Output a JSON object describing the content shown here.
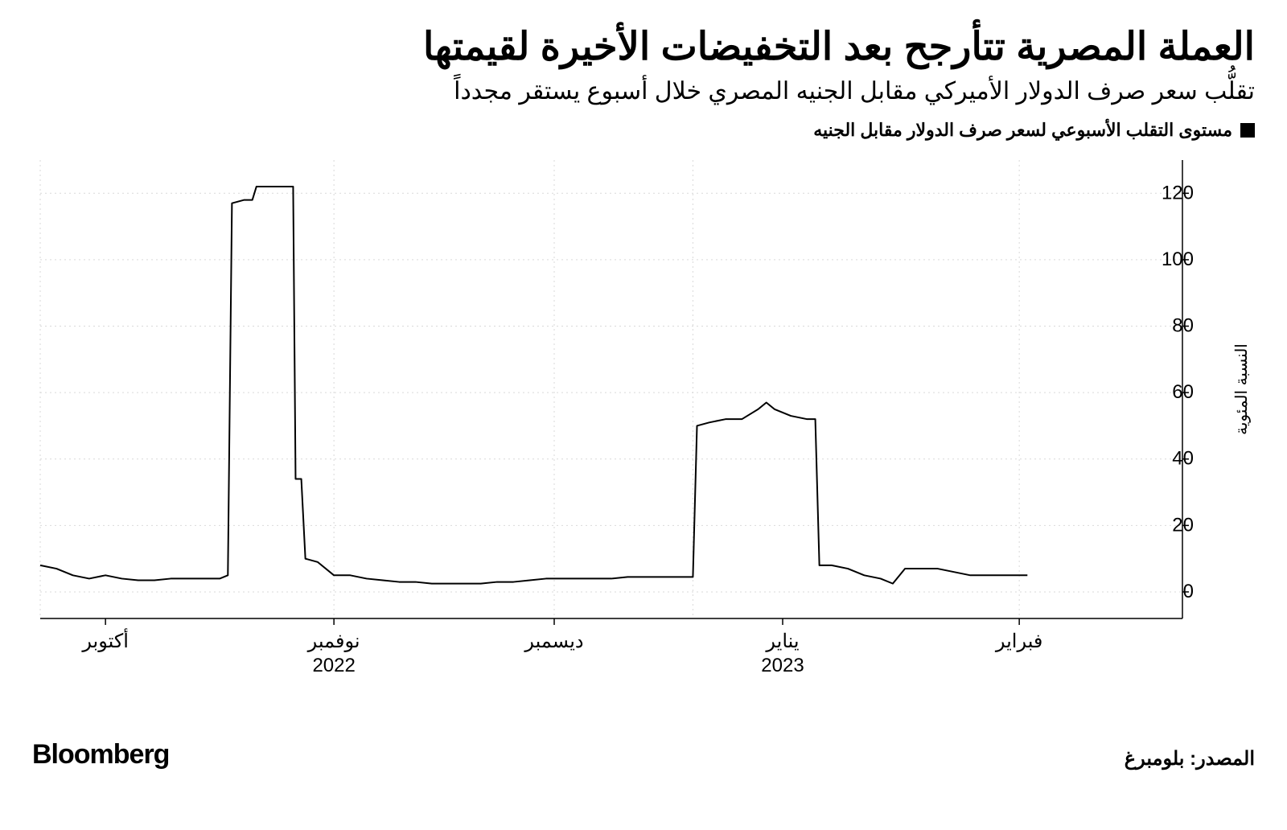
{
  "title": "العملة المصرية تتأرجح بعد التخفيضات الأخيرة لقيمتها",
  "subtitle": "تقلُّب سعر صرف الدولار الأميركي مقابل الجنيه المصري خلال أسبوع يستقر مجدداً",
  "legend_label": "مستوى التقلب الأسبوعي لسعر صرف الدولار مقابل الجنيه",
  "brand": "Bloomberg",
  "source": "المصدر: بلومبرغ",
  "chart": {
    "type": "line",
    "ylim": [
      -8,
      130
    ],
    "yticks": [
      0,
      20,
      40,
      60,
      80,
      100,
      120
    ],
    "yaxis_title": "النسبة المئوية",
    "background_color": "#ffffff",
    "axis_color": "#000000",
    "grid_color": "#d9d9d9",
    "line_color": "#000000",
    "line_width": 2,
    "xrange": [
      0,
      140
    ],
    "months": [
      {
        "x": 8,
        "label": "أكتوبر",
        "year": ""
      },
      {
        "x": 36,
        "label": "نوفمبر",
        "year": "2022"
      },
      {
        "x": 63,
        "label": "ديسمبر",
        "year": ""
      },
      {
        "x": 91,
        "label": "يناير",
        "year": "2023"
      },
      {
        "x": 120,
        "label": "فبراير",
        "year": ""
      }
    ],
    "vgrids": [
      0,
      36,
      63,
      80,
      120
    ],
    "series": [
      {
        "x": 0,
        "y": 8
      },
      {
        "x": 2,
        "y": 7
      },
      {
        "x": 4,
        "y": 5
      },
      {
        "x": 6,
        "y": 4
      },
      {
        "x": 8,
        "y": 5
      },
      {
        "x": 10,
        "y": 4
      },
      {
        "x": 12,
        "y": 3.5
      },
      {
        "x": 14,
        "y": 3.5
      },
      {
        "x": 16,
        "y": 4
      },
      {
        "x": 18,
        "y": 4
      },
      {
        "x": 20,
        "y": 4
      },
      {
        "x": 22,
        "y": 4
      },
      {
        "x": 23,
        "y": 5
      },
      {
        "x": 23.5,
        "y": 117
      },
      {
        "x": 25,
        "y": 118
      },
      {
        "x": 26,
        "y": 118
      },
      {
        "x": 26.5,
        "y": 122
      },
      {
        "x": 28,
        "y": 122
      },
      {
        "x": 30,
        "y": 122
      },
      {
        "x": 31,
        "y": 122
      },
      {
        "x": 31.3,
        "y": 34
      },
      {
        "x": 32,
        "y": 34
      },
      {
        "x": 32.5,
        "y": 10
      },
      {
        "x": 34,
        "y": 9
      },
      {
        "x": 36,
        "y": 5
      },
      {
        "x": 38,
        "y": 5
      },
      {
        "x": 40,
        "y": 4
      },
      {
        "x": 42,
        "y": 3.5
      },
      {
        "x": 44,
        "y": 3
      },
      {
        "x": 46,
        "y": 3
      },
      {
        "x": 48,
        "y": 2.5
      },
      {
        "x": 50,
        "y": 2.5
      },
      {
        "x": 52,
        "y": 2.5
      },
      {
        "x": 54,
        "y": 2.5
      },
      {
        "x": 56,
        "y": 3
      },
      {
        "x": 58,
        "y": 3
      },
      {
        "x": 60,
        "y": 3.5
      },
      {
        "x": 62,
        "y": 4
      },
      {
        "x": 64,
        "y": 4
      },
      {
        "x": 66,
        "y": 4
      },
      {
        "x": 68,
        "y": 4
      },
      {
        "x": 70,
        "y": 4
      },
      {
        "x": 72,
        "y": 4.5
      },
      {
        "x": 74,
        "y": 4.5
      },
      {
        "x": 76,
        "y": 4.5
      },
      {
        "x": 78,
        "y": 4.5
      },
      {
        "x": 80,
        "y": 4.5
      },
      {
        "x": 80.5,
        "y": 50
      },
      {
        "x": 82,
        "y": 51
      },
      {
        "x": 84,
        "y": 52
      },
      {
        "x": 86,
        "y": 52
      },
      {
        "x": 88,
        "y": 55
      },
      {
        "x": 89,
        "y": 57
      },
      {
        "x": 90,
        "y": 55
      },
      {
        "x": 92,
        "y": 53
      },
      {
        "x": 94,
        "y": 52
      },
      {
        "x": 95,
        "y": 52
      },
      {
        "x": 95.5,
        "y": 8
      },
      {
        "x": 97,
        "y": 8
      },
      {
        "x": 99,
        "y": 7
      },
      {
        "x": 101,
        "y": 5
      },
      {
        "x": 103,
        "y": 4
      },
      {
        "x": 104.5,
        "y": 2.5
      },
      {
        "x": 106,
        "y": 7
      },
      {
        "x": 108,
        "y": 7
      },
      {
        "x": 110,
        "y": 7
      },
      {
        "x": 112,
        "y": 6
      },
      {
        "x": 114,
        "y": 5
      },
      {
        "x": 116,
        "y": 5
      },
      {
        "x": 118,
        "y": 5
      },
      {
        "x": 120,
        "y": 5
      },
      {
        "x": 121,
        "y": 5
      }
    ]
  }
}
